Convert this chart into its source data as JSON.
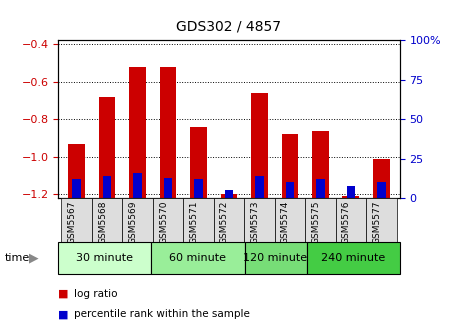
{
  "title": "GDS302 / 4857",
  "samples": [
    "GSM5567",
    "GSM5568",
    "GSM5569",
    "GSM5570",
    "GSM5571",
    "GSM5572",
    "GSM5573",
    "GSM5574",
    "GSM5575",
    "GSM5576",
    "GSM5577"
  ],
  "log_ratios": [
    -0.93,
    -0.68,
    -0.52,
    -0.52,
    -0.84,
    -1.2,
    -0.66,
    -0.88,
    -0.86,
    -1.21,
    -1.01
  ],
  "percentile_ranks": [
    12,
    14,
    16,
    13,
    12,
    5,
    14,
    10,
    12,
    8,
    10
  ],
  "bar_bottom": -1.22,
  "ylim": [
    -1.22,
    -0.38
  ],
  "y2lim": [
    0,
    100
  ],
  "yticks": [
    -1.2,
    -1.0,
    -0.8,
    -0.6,
    -0.4
  ],
  "y2ticks": [
    0,
    25,
    50,
    75,
    100
  ],
  "groups": [
    {
      "label": "30 minute",
      "start": 0,
      "end": 3,
      "color": "#ccffcc"
    },
    {
      "label": "60 minute",
      "start": 3,
      "end": 6,
      "color": "#99ee99"
    },
    {
      "label": "120 minute",
      "start": 6,
      "end": 8,
      "color": "#77dd77"
    },
    {
      "label": "240 minute",
      "start": 8,
      "end": 11,
      "color": "#44cc44"
    }
  ],
  "red_color": "#cc0000",
  "blue_color": "#0000cc",
  "grid_color": "#000000",
  "tick_label_color_left": "#cc0000",
  "tick_label_color_right": "#0000cc",
  "bar_width": 0.55,
  "blue_bar_width": 0.28,
  "bg_color": "#ffffff",
  "plot_bg": "#ffffff",
  "xtick_bg": "#dddddd"
}
